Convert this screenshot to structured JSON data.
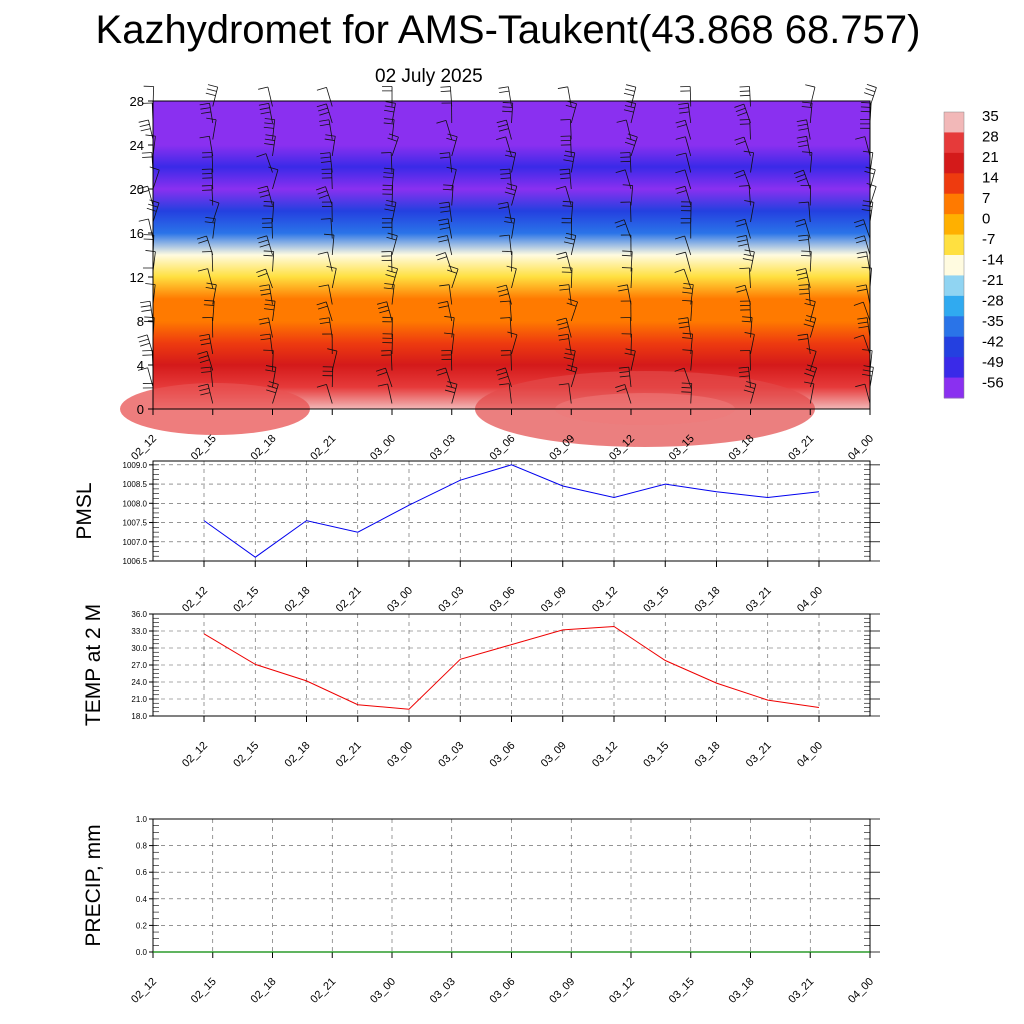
{
  "header": {
    "title": "Kazhydromet for AMS-Taukent(43.868 68.757)",
    "subtitle": "02 July 2025"
  },
  "chart_data": [
    {
      "type": "heatmap",
      "name": "temperature-wind-cross-section",
      "x_tick_labels": [
        "02_12",
        "02_15",
        "02_18",
        "02_21",
        "03_00",
        "03_03",
        "03_06",
        "03_09",
        "03_12",
        "03_15",
        "03_18",
        "03_21",
        "04_00"
      ],
      "y_ticks": [
        0,
        4,
        8,
        12,
        16,
        20,
        24,
        28
      ],
      "ylim": [
        0,
        28
      ],
      "colorbar": {
        "labels": [
          "35",
          "28",
          "21",
          "14",
          "7",
          "0",
          "-7",
          "-14",
          "-21",
          "-28",
          "-35",
          "-42",
          "-49",
          "-56"
        ],
        "colors": [
          "#f2b8b8",
          "#e63a3a",
          "#d41a1a",
          "#ee3b0f",
          "#ff7a00",
          "#ffb000",
          "#ffe040",
          "#fffbe0",
          "#90d4f2",
          "#30aaf0",
          "#2a74e8",
          "#2440e0",
          "#3a2ae8",
          "#8a30f0"
        ]
      },
      "levels": [
        0,
        2,
        4,
        6,
        8,
        10,
        12,
        14,
        16,
        18,
        20,
        22,
        24,
        26,
        28
      ],
      "temperature_profile": [
        30,
        26,
        21,
        14,
        7,
        2,
        -7,
        -20,
        -35,
        -47,
        -56,
        -49,
        -58,
        -60,
        -62
      ],
      "wind_barbs": true
    },
    {
      "type": "line",
      "ylabel": "PMSL",
      "x": [
        "02_12",
        "02_15",
        "02_18",
        "02_21",
        "03_00",
        "03_03",
        "03_06",
        "03_09",
        "03_12",
        "03_15",
        "03_18",
        "03_21",
        "04_00"
      ],
      "values": [
        1007.55,
        1006.6,
        1007.55,
        1007.25,
        1007.95,
        1008.6,
        1009.0,
        1008.45,
        1008.15,
        1008.5,
        1008.3,
        1008.15,
        1008.3
      ],
      "ylim": [
        1006.5,
        1009.1
      ],
      "y_ticks": [
        "1006.5",
        "1007.0",
        "1007.5",
        "1008.0",
        "1008.5",
        "1009.0"
      ],
      "color": "#0000ee",
      "grid": true
    },
    {
      "type": "line",
      "ylabel": "TEMP at 2 M",
      "x": [
        "02_12",
        "02_15",
        "02_18",
        "02_21",
        "03_00",
        "03_03",
        "03_06",
        "03_09",
        "03_12",
        "03_15",
        "03_18",
        "03_21",
        "04_00"
      ],
      "values": [
        32.5,
        27.1,
        24.2,
        20.0,
        19.2,
        28.0,
        30.6,
        33.2,
        33.8,
        27.8,
        23.8,
        20.8,
        19.5
      ],
      "ylim": [
        18,
        36
      ],
      "y_ticks": [
        "18.0",
        "21.0",
        "24.0",
        "27.0",
        "30.0",
        "33.0",
        "36.0"
      ],
      "color": "#ee0000",
      "grid": true
    },
    {
      "type": "line",
      "ylabel": "PRECIP, mm",
      "x": [
        "02_12",
        "02_15",
        "02_18",
        "02_21",
        "03_00",
        "03_03",
        "03_06",
        "03_09",
        "03_12",
        "03_15",
        "03_18",
        "03_21",
        "04_00"
      ],
      "values": [
        0,
        0,
        0,
        0,
        0,
        0,
        0,
        0,
        0,
        0,
        0,
        0,
        0
      ],
      "ylim": [
        0,
        1
      ],
      "y_ticks": [
        "0.0",
        "0.2",
        "0.4",
        "0.6",
        "0.8",
        "1.0"
      ],
      "color": "#008800",
      "grid": true
    }
  ]
}
